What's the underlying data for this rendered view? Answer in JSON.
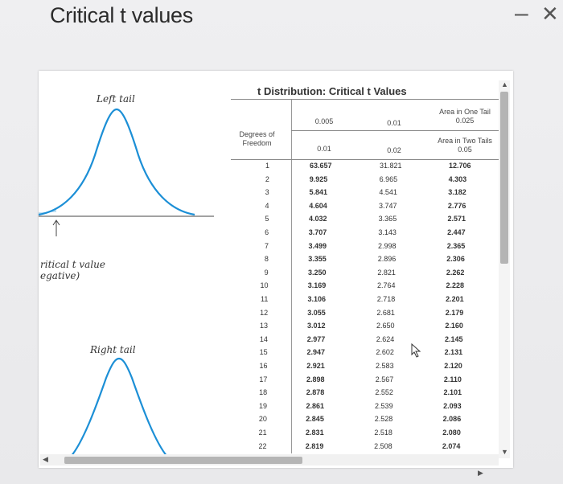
{
  "window": {
    "title": "Critical t values",
    "minimize_label": "–",
    "close_label": "✕"
  },
  "graphs": {
    "left_label": "Left tail",
    "right_label": "Right tail",
    "annot_line1": "ritical t value",
    "annot_line2": "egative)"
  },
  "table": {
    "title": "t Distribution: Critical t Values",
    "degrees_label_1": "Degrees of",
    "degrees_label_2": "Freedom",
    "one_tail_label_1": "Area in One Tail",
    "one_tail_label_2": "0.025",
    "two_tail_label_1": "Area in Two Tails",
    "two_tail_label_2": "0.05",
    "one_tail_values": [
      "0.005",
      "0.01"
    ],
    "two_tail_values": [
      "0.01",
      "0.02"
    ],
    "rows": [
      {
        "df": "1",
        "a": "63.657",
        "b": "31.821",
        "c": "12.706"
      },
      {
        "df": "2",
        "a": "9.925",
        "b": "6.965",
        "c": "4.303"
      },
      {
        "df": "3",
        "a": "5.841",
        "b": "4.541",
        "c": "3.182"
      },
      {
        "df": "4",
        "a": "4.604",
        "b": "3.747",
        "c": "2.776"
      },
      {
        "df": "5",
        "a": "4.032",
        "b": "3.365",
        "c": "2.571"
      },
      {
        "df": "6",
        "a": "3.707",
        "b": "3.143",
        "c": "2.447"
      },
      {
        "df": "7",
        "a": "3.499",
        "b": "2.998",
        "c": "2.365"
      },
      {
        "df": "8",
        "a": "3.355",
        "b": "2.896",
        "c": "2.306"
      },
      {
        "df": "9",
        "a": "3.250",
        "b": "2.821",
        "c": "2.262"
      },
      {
        "df": "10",
        "a": "3.169",
        "b": "2.764",
        "c": "2.228"
      },
      {
        "df": "11",
        "a": "3.106",
        "b": "2.718",
        "c": "2.201"
      },
      {
        "df": "12",
        "a": "3.055",
        "b": "2.681",
        "c": "2.179"
      },
      {
        "df": "13",
        "a": "3.012",
        "b": "2.650",
        "c": "2.160"
      },
      {
        "df": "14",
        "a": "2.977",
        "b": "2.624",
        "c": "2.145"
      },
      {
        "df": "15",
        "a": "2.947",
        "b": "2.602",
        "c": "2.131"
      },
      {
        "df": "16",
        "a": "2.921",
        "b": "2.583",
        "c": "2.120"
      },
      {
        "df": "17",
        "a": "2.898",
        "b": "2.567",
        "c": "2.110"
      },
      {
        "df": "18",
        "a": "2.878",
        "b": "2.552",
        "c": "2.101"
      },
      {
        "df": "19",
        "a": "2.861",
        "b": "2.539",
        "c": "2.093"
      },
      {
        "df": "20",
        "a": "2.845",
        "b": "2.528",
        "c": "2.086"
      },
      {
        "df": "21",
        "a": "2.831",
        "b": "2.518",
        "c": "2.080"
      },
      {
        "df": "22",
        "a": "2.819",
        "b": "2.508",
        "c": "2.074"
      }
    ]
  },
  "colors": {
    "curve": "#1c8fd6",
    "shade": "#bfe0f3",
    "scroll_thumb": "#b4b4b4"
  }
}
